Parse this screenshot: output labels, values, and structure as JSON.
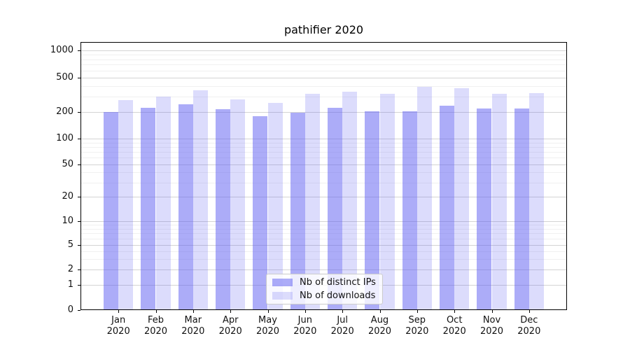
{
  "chart_data": {
    "type": "bar",
    "title": "pathifier 2020",
    "categories": [
      "Jan",
      "Feb",
      "Mar",
      "Apr",
      "May",
      "Jun",
      "Jul",
      "Aug",
      "Sep",
      "Oct",
      "Nov",
      "Dec"
    ],
    "category_year": "2020",
    "series": [
      {
        "name": "Nb of distinct IPs",
        "color_hex_on_white": "#a9a9f7",
        "color_rgba": "rgba(90,90,242,0.5)",
        "values": [
          200,
          225,
          245,
          215,
          180,
          195,
          225,
          205,
          205,
          235,
          220,
          220
        ]
      },
      {
        "name": "Nb of downloads",
        "color_hex_on_white": "#dcdcf8",
        "color_rgba": "rgba(90,90,242,0.21)",
        "values": [
          275,
          300,
          355,
          280,
          255,
          325,
          345,
          325,
          395,
          380,
          325,
          330
        ]
      }
    ],
    "y_axis": {
      "scale": "symlog",
      "ticks": [
        0,
        1,
        2,
        5,
        10,
        20,
        50,
        100,
        200,
        500,
        1000
      ],
      "minor_ticks": [
        3,
        4,
        6,
        7,
        8,
        9,
        30,
        40,
        60,
        70,
        80,
        90,
        300,
        400,
        600,
        700,
        800,
        900
      ],
      "range": [
        0,
        1300
      ]
    },
    "x_axis": {
      "tick_labels_line1": [
        "Jan",
        "Feb",
        "Mar",
        "Apr",
        "May",
        "Jun",
        "Jul",
        "Aug",
        "Sep",
        "Oct",
        "Nov",
        "Dec"
      ],
      "tick_labels_line2": "2020"
    },
    "legend": {
      "position": "lower center",
      "entries": [
        "Nb of distinct IPs",
        "Nb of downloads"
      ]
    },
    "grid": "major and minor horizontal gridlines",
    "grid_major_color": "#d4d4d4",
    "grid_minor_color": "#f0f0f0"
  }
}
